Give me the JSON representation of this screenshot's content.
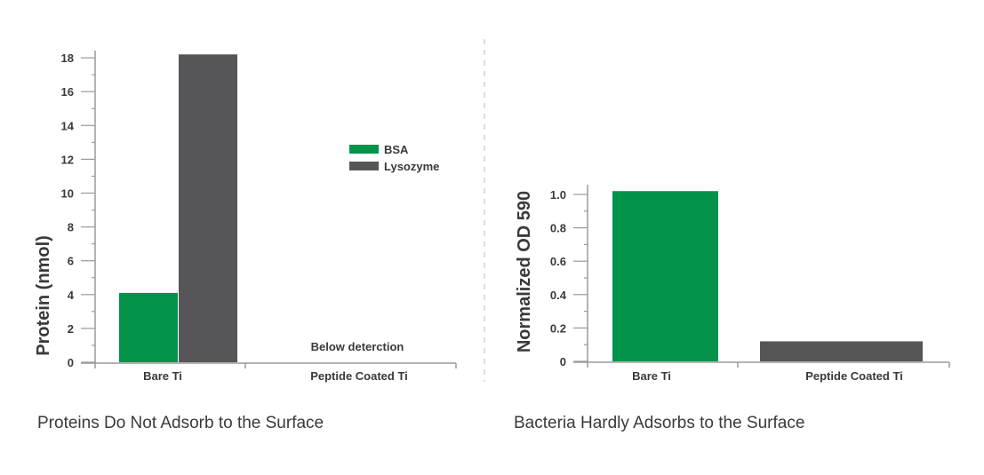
{
  "colors": {
    "bsa": "#02924a",
    "lysozyme": "#565658",
    "axis": "#9a9a9a",
    "divider": "#bdbdbd",
    "text": "#3a3a3a"
  },
  "chart_data": [
    {
      "type": "bar",
      "title": "Proteins Do Not Adsorb to the Surface",
      "xlabel": "",
      "ylabel": "Protein (nmol)",
      "categories": [
        "Bare Ti",
        "Peptide Coated Ti"
      ],
      "ylim": [
        0,
        18
      ],
      "yticks": [
        "0",
        "2",
        "4",
        "6",
        "8",
        "10",
        "12",
        "14",
        "16",
        "18"
      ],
      "series": [
        {
          "name": "BSA",
          "color": "#02924a",
          "values": [
            4.1,
            null
          ]
        },
        {
          "name": "Lysozyme",
          "color": "#565658",
          "values": [
            18.2,
            null
          ]
        }
      ],
      "annotations": [
        "Below deterction"
      ],
      "legend_position": "top-right",
      "grid": false
    },
    {
      "type": "bar",
      "title": "Bacteria Hardly Adsorbs to the Surface",
      "xlabel": "",
      "ylabel": "Normalized OD 590",
      "categories": [
        "Bare Ti",
        "Peptide Coated Ti"
      ],
      "ylim": [
        0,
        1.0
      ],
      "yticks": [
        "0",
        "0.2",
        "0.4",
        "0.6",
        "0.8",
        "1.0"
      ],
      "values": [
        1.02,
        0.12
      ],
      "colors": [
        "#02924a",
        "#565658"
      ],
      "grid": false
    }
  ]
}
